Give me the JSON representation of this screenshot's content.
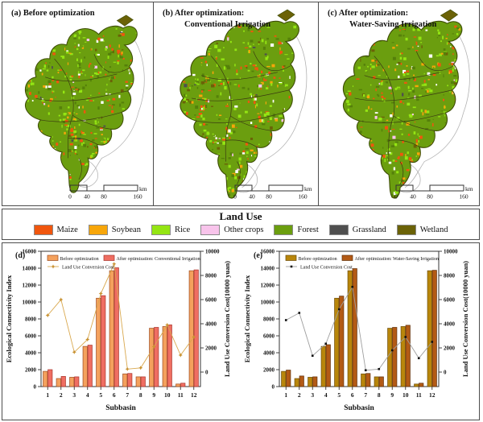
{
  "figure": {
    "maps": {
      "panels": [
        {
          "label": "(a)",
          "title_lines": [
            "Before optimization"
          ]
        },
        {
          "label": "(b)",
          "title_lines": [
            "After optimization:",
            "Conventional Irrigation"
          ]
        },
        {
          "label": "(c)",
          "title_lines": [
            "After optimization:",
            "Water-Saving Irrigation"
          ]
        }
      ],
      "scale_bar": {
        "tick_labels": [
          "0",
          "40",
          "80",
          "160"
        ],
        "unit": "km"
      }
    },
    "land_use_legend": {
      "title": "Land Use",
      "items": [
        {
          "label": "Maize",
          "color": "#F0560E"
        },
        {
          "label": "Soybean",
          "color": "#F7A60A"
        },
        {
          "label": "Rice",
          "color": "#94E513"
        },
        {
          "label": "Other crops",
          "color": "#F8C4EB"
        },
        {
          "label": "Forest",
          "color": "#6B9E0F"
        },
        {
          "label": "Grassland",
          "color": "#4F4F4F"
        },
        {
          "label": "Wetland",
          "color": "#6B6207"
        }
      ]
    }
  },
  "chart_data": [
    {
      "type": "bar",
      "panel_label": "(d)",
      "categories": [
        "1",
        "2",
        "3",
        "4",
        "5",
        "6",
        "7",
        "8",
        "9",
        "10",
        "11",
        "12"
      ],
      "xlabel": "Subbasin",
      "ylabel_left": "Ecological Connectivity Index",
      "ylabel_right": "Land Use Conversion Cost(10000 yuan)",
      "ylim_left": [
        0,
        16000
      ],
      "yticks_left": [
        0,
        2000,
        4000,
        6000,
        8000,
        10000,
        12000,
        14000,
        16000
      ],
      "ylim_right": [
        -1200,
        10000
      ],
      "yticks_right": [
        0,
        2000,
        4000,
        6000,
        8000,
        10000
      ],
      "legend_position": "top-left",
      "grid": false,
      "series": [
        {
          "name": "Before optimization",
          "type": "bar",
          "axis": "left",
          "fill": "#F4A15D",
          "stroke": "#9C4A1E",
          "values": [
            1800,
            950,
            1100,
            4750,
            10450,
            13700,
            1500,
            1150,
            6900,
            7100,
            300,
            13700
          ]
        },
        {
          "name": "After optimization: Conventional Irrigation",
          "type": "bar",
          "axis": "left",
          "fill": "#EF6E62",
          "stroke": "#A8322A",
          "values": [
            2000,
            1200,
            1150,
            4900,
            10750,
            14050,
            1550,
            1150,
            7000,
            7300,
            400,
            13800
          ]
        },
        {
          "name": "Land Use Conversion Cost",
          "type": "line",
          "axis": "right",
          "stroke": "#D9A84E",
          "marker": "star",
          "marker_color": "#C89232",
          "values": [
            4700,
            6000,
            1650,
            2700,
            6500,
            8950,
            250,
            350,
            2100,
            3900,
            1400,
            2900
          ]
        }
      ]
    },
    {
      "type": "bar",
      "panel_label": "(e)",
      "categories": [
        "1",
        "2",
        "3",
        "4",
        "5",
        "6",
        "7",
        "8",
        "9",
        "10",
        "11",
        "12"
      ],
      "xlabel": "Subbasin",
      "ylabel_left": "Ecological Connectivity Index",
      "ylabel_right": "Land Use Conversion Cost(10000 yuan)",
      "ylim_left": [
        0,
        16000
      ],
      "yticks_left": [
        0,
        2000,
        4000,
        6000,
        8000,
        10000,
        12000,
        14000,
        16000
      ],
      "ylim_right": [
        -1200,
        10000
      ],
      "yticks_right": [
        0,
        2000,
        4000,
        6000,
        8000,
        10000
      ],
      "legend_position": "top-left",
      "grid": false,
      "series": [
        {
          "name": "Before optimization",
          "type": "bar",
          "axis": "left",
          "fill": "#B8860B",
          "stroke": "#6B4A06",
          "values": [
            1800,
            950,
            1100,
            4750,
            10450,
            13700,
            1500,
            1150,
            6900,
            7100,
            300,
            13700
          ]
        },
        {
          "name": "After optimization: Water-Saving Irrigation",
          "type": "bar",
          "axis": "left",
          "fill": "#B35A15",
          "stroke": "#5F2E08",
          "values": [
            1950,
            1250,
            1150,
            4950,
            10700,
            13950,
            1550,
            1150,
            7000,
            7250,
            400,
            13750
          ]
        },
        {
          "name": "Land Use Conversion Cost",
          "type": "line",
          "axis": "right",
          "stroke": "#9E9E9E",
          "marker": "square",
          "marker_color": "#111111",
          "values": [
            4300,
            4900,
            1350,
            2350,
            5200,
            7050,
            150,
            250,
            1800,
            2900,
            1150,
            2500
          ]
        }
      ]
    }
  ]
}
